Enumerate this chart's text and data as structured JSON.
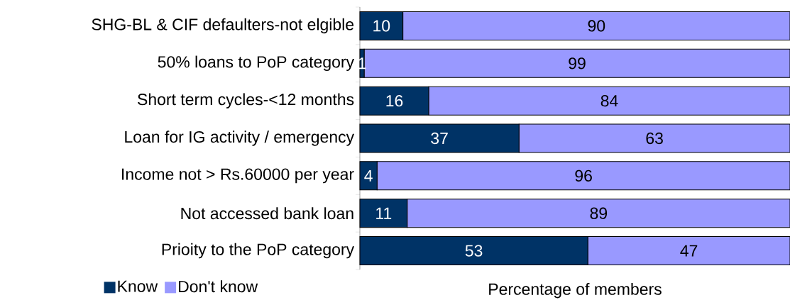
{
  "chart_data": {
    "type": "bar",
    "orientation": "horizontal",
    "stacked": true,
    "data_labels": true,
    "legend": "bottom left",
    "tick_labels": "y",
    "xlabel": "Percentage of members",
    "categories": [
      "SHG-BL & CIF defaulters-not elgible",
      "50% loans to PoP category",
      "Short term cycles-<12 months",
      "Loan for IG activity / emergency",
      "Income not > Rs.60000 per year",
      "Not accessed bank loan",
      "Prioity to the PoP category"
    ],
    "series": [
      {
        "name": "Know",
        "color": "#003366",
        "values": [
          10,
          1,
          16,
          37,
          4,
          11,
          53
        ]
      },
      {
        "name": "Don't know",
        "color": "#9999ff",
        "values": [
          90,
          99,
          84,
          63,
          96,
          89,
          47
        ]
      }
    ]
  }
}
